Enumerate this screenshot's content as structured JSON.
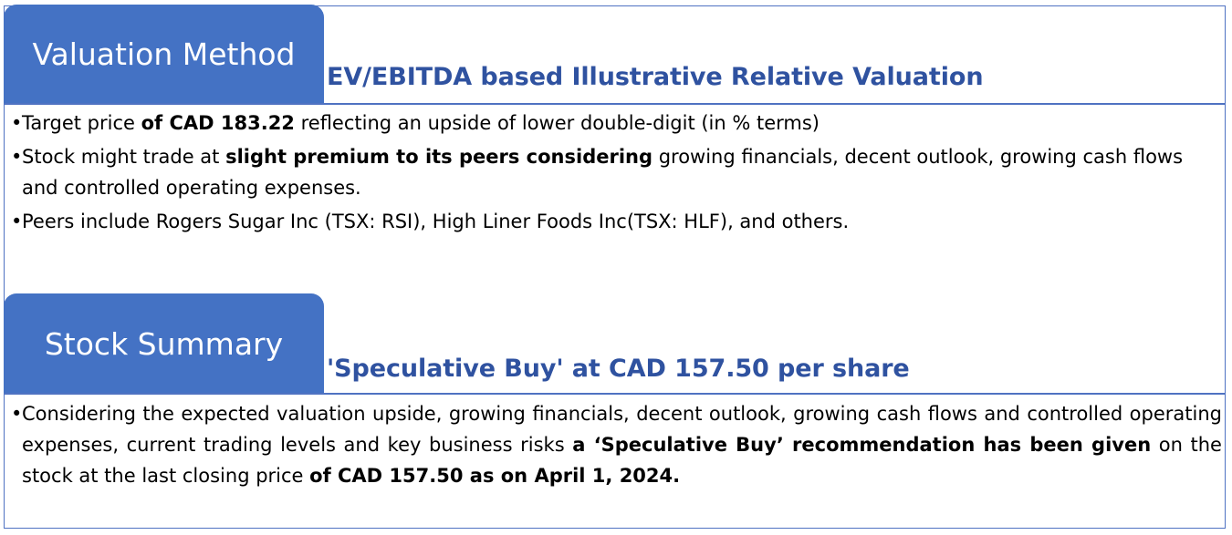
{
  "valuation": {
    "tab_label": "Valuation Method",
    "heading": "EV/EBITDA based Illustrative Relative Valuation",
    "bullets": [
      {
        "p1": "Target price ",
        "b1": "of CAD 183.22",
        "p2": " reflecting an upside of lower double-digit (in % terms)"
      },
      {
        "p1": "Stock might trade at ",
        "b1": "slight premium to its peers considering",
        "p2": " growing financials, decent outlook, growing cash flows and controlled operating expenses."
      },
      {
        "p1": "Peers include Rogers Sugar Inc (TSX: RSI), High Liner Foods Inc(TSX: HLF), and others."
      }
    ]
  },
  "stock_summary": {
    "tab_label": "Stock Summary",
    "heading": "'Speculative Buy' at CAD 157.50 per share",
    "bullet": {
      "p1": "Considering the expected valuation upside, growing financials, decent outlook, growing cash flows and controlled operating expenses, current trading levels and key business risks ",
      "b1": "a ‘Speculative Buy’ recommendation has been given",
      "p2": " on the stock at the last closing price ",
      "b2": "of CAD 157.50 as on April 1, 2024."
    }
  },
  "colors": {
    "tab_background": "#4472c4",
    "heading_text": "#2f52a0",
    "border": "#4f72c2"
  }
}
